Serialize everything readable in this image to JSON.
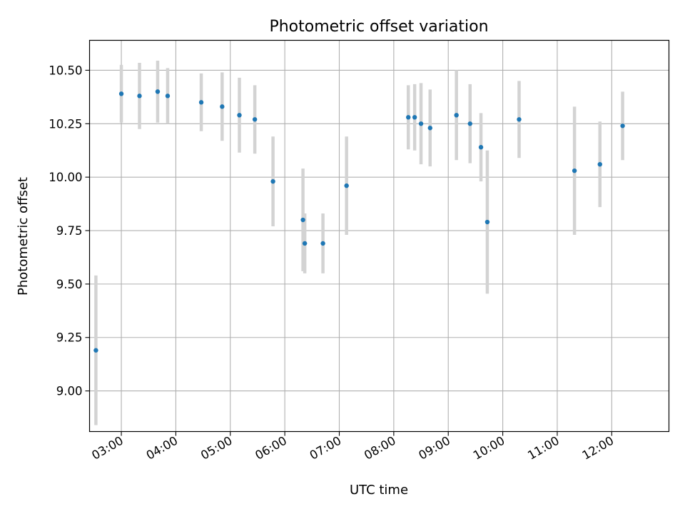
{
  "chart_data": {
    "type": "scatter",
    "title": "Photometric offset variation",
    "xlabel": "UTC time",
    "ylabel": "Photometric offset",
    "x_tick_labels": [
      "03:00",
      "04:00",
      "05:00",
      "06:00",
      "07:00",
      "08:00",
      "09:00",
      "10:00",
      "11:00",
      "12:00"
    ],
    "y_tick_labels": [
      "9.00",
      "9.25",
      "9.50",
      "9.75",
      "10.00",
      "10.25",
      "10.50"
    ],
    "y_ticks": [
      9.0,
      9.25,
      9.5,
      9.75,
      10.0,
      10.25,
      10.5
    ],
    "xlim": [
      "02:25",
      "13:03"
    ],
    "ylim": [
      8.81,
      10.64
    ],
    "grid": true,
    "colors": {
      "point": "#1f77b4",
      "errorbar": "#d3d3d3",
      "grid": "#b0b0b0"
    },
    "points": [
      {
        "time": "02:32",
        "y": 9.19,
        "err": 0.35
      },
      {
        "time": "03:00",
        "y": 10.39,
        "err": 0.135
      },
      {
        "time": "03:20",
        "y": 10.38,
        "err": 0.155
      },
      {
        "time": "03:40",
        "y": 10.4,
        "err": 0.145
      },
      {
        "time": "03:51",
        "y": 10.38,
        "err": 0.13
      },
      {
        "time": "04:28",
        "y": 10.35,
        "err": 0.135
      },
      {
        "time": "04:51",
        "y": 10.33,
        "err": 0.16
      },
      {
        "time": "05:10",
        "y": 10.29,
        "err": 0.175
      },
      {
        "time": "05:27",
        "y": 10.27,
        "err": 0.16
      },
      {
        "time": "05:47",
        "y": 9.98,
        "err": 0.21
      },
      {
        "time": "06:20",
        "y": 9.8,
        "err": 0.24
      },
      {
        "time": "06:22",
        "y": 9.69,
        "err": 0.14
      },
      {
        "time": "06:42",
        "y": 9.69,
        "err": 0.14
      },
      {
        "time": "07:08",
        "y": 9.96,
        "err": 0.23
      },
      {
        "time": "08:16",
        "y": 10.28,
        "err": 0.15
      },
      {
        "time": "08:23",
        "y": 10.28,
        "err": 0.155
      },
      {
        "time": "08:30",
        "y": 10.25,
        "err": 0.19
      },
      {
        "time": "08:40",
        "y": 10.23,
        "err": 0.18
      },
      {
        "time": "09:09",
        "y": 10.29,
        "err": 0.21
      },
      {
        "time": "09:24",
        "y": 10.25,
        "err": 0.185
      },
      {
        "time": "09:36",
        "y": 10.14,
        "err": 0.16
      },
      {
        "time": "09:43",
        "y": 9.79,
        "err": 0.335
      },
      {
        "time": "10:18",
        "y": 10.27,
        "err": 0.18
      },
      {
        "time": "11:19",
        "y": 10.03,
        "err": 0.3
      },
      {
        "time": "11:47",
        "y": 10.06,
        "err": 0.2
      },
      {
        "time": "12:12",
        "y": 10.24,
        "err": 0.16
      }
    ]
  }
}
